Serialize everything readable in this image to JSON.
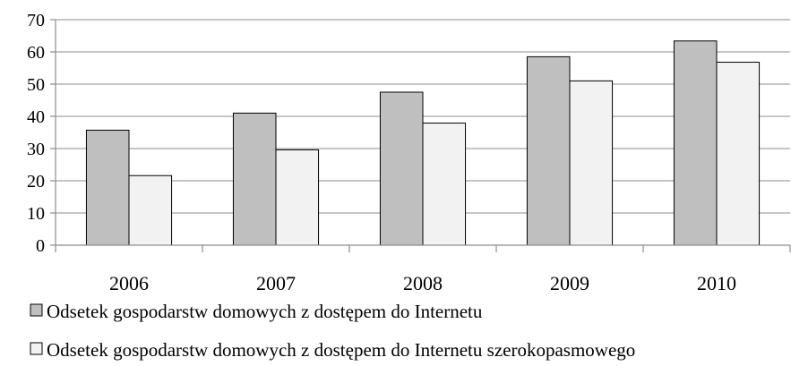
{
  "chart_data": {
    "type": "bar",
    "categories": [
      "2006",
      "2007",
      "2008",
      "2009",
      "2010"
    ],
    "series": [
      {
        "name": "Odsetek gospodarstw domowych z dostępem do Internetu",
        "values": [
          35.7,
          41,
          47.5,
          58.5,
          63.4
        ],
        "color": "#bfbfbf"
      },
      {
        "name": "Odsetek gospodarstw domowych z dostępem do Internetu szerokopasmowego",
        "values": [
          21.6,
          29.6,
          37.9,
          51,
          56.8
        ],
        "color": "#f2f2f2"
      }
    ],
    "ylim": [
      0,
      70
    ],
    "yticks": [
      "0",
      "10",
      "20",
      "30",
      "40",
      "50",
      "60",
      "70"
    ],
    "grid": true,
    "legend": "bottom-left",
    "title": "",
    "xlabel": "",
    "ylabel": ""
  }
}
